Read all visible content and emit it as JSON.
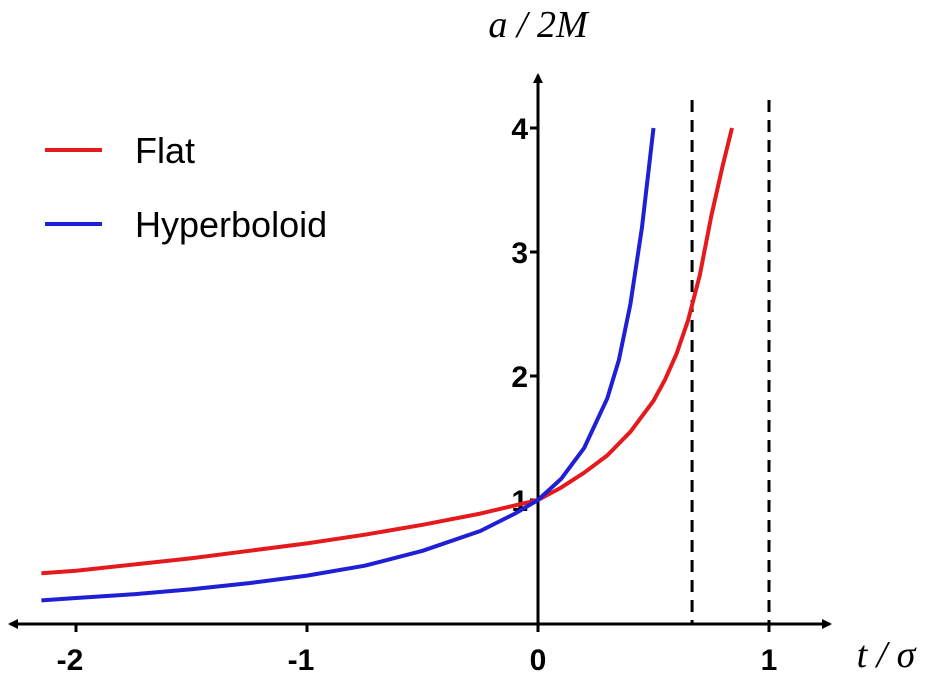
{
  "chart_data": {
    "type": "line",
    "title": "",
    "xlabel": "t / σ",
    "ylabel": "a / 2M",
    "xlim": [
      -2.2,
      1.27
    ],
    "ylim": [
      0,
      4.35
    ],
    "x_ticks": [
      -2,
      -1,
      0,
      1
    ],
    "x_tick_labels": [
      "-2",
      "-1",
      "0",
      "1"
    ],
    "y_ticks": [
      1,
      2,
      3,
      4
    ],
    "y_tick_labels": [
      "1",
      "2",
      "3",
      "4"
    ],
    "grid": false,
    "legend_position": "top-left",
    "vertical_lines": [
      {
        "x": 0.667,
        "style": "dashed",
        "color": "#000000"
      },
      {
        "x": 1.0,
        "style": "dashed",
        "color": "#000000"
      }
    ],
    "series": [
      {
        "name": "Flat",
        "color": "#e41a1c",
        "x": [
          -2.15,
          -2.0,
          -1.75,
          -1.5,
          -1.25,
          -1.0,
          -0.75,
          -0.5,
          -0.25,
          0.0,
          0.1,
          0.2,
          0.3,
          0.4,
          0.5,
          0.55,
          0.6,
          0.65,
          0.7,
          0.75,
          0.8,
          0.84
        ],
        "y": [
          0.41,
          0.43,
          0.48,
          0.53,
          0.59,
          0.65,
          0.72,
          0.8,
          0.89,
          1.0,
          1.1,
          1.22,
          1.36,
          1.55,
          1.8,
          1.97,
          2.18,
          2.45,
          2.81,
          3.29,
          3.7,
          4.0
        ]
      },
      {
        "name": "Hyperboloid",
        "color": "#1f1fd6",
        "x": [
          -2.15,
          -2.0,
          -1.75,
          -1.5,
          -1.25,
          -1.0,
          -0.75,
          -0.5,
          -0.25,
          -0.1,
          0.0,
          0.1,
          0.2,
          0.3,
          0.35,
          0.4,
          0.45,
          0.5
        ],
        "y": [
          0.19,
          0.21,
          0.24,
          0.28,
          0.33,
          0.39,
          0.47,
          0.59,
          0.75,
          0.89,
          1.0,
          1.17,
          1.42,
          1.82,
          2.13,
          2.58,
          3.2,
          4.0
        ]
      }
    ]
  }
}
